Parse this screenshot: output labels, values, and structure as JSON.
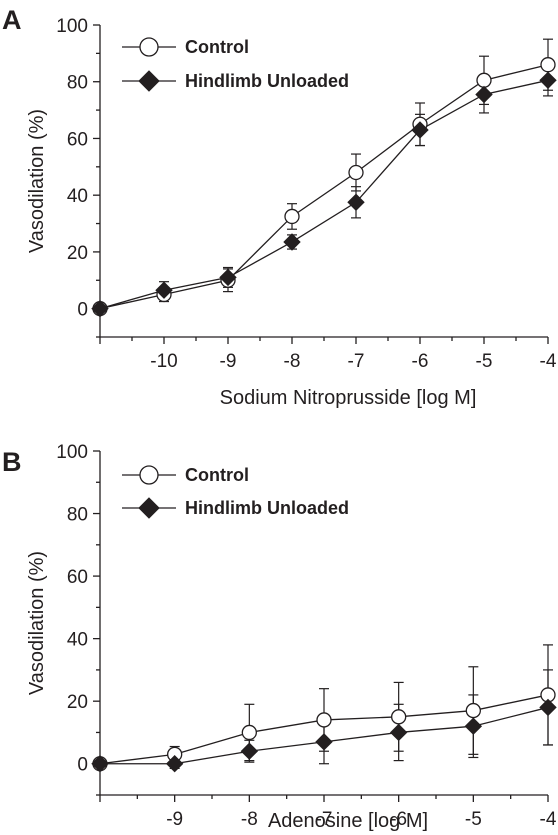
{
  "chart_data": [
    {
      "type": "line",
      "panel_label": "A",
      "xlabel": "Sodium Nitroprusside [log M]",
      "ylabel": "Vasodilation (%)",
      "ylim": [
        -10,
        100
      ],
      "xlim": [
        -11,
        -4
      ],
      "yticks": [
        0,
        20,
        40,
        60,
        80,
        100
      ],
      "xticks": [
        -10,
        -9,
        -8,
        -7,
        -6,
        -5,
        -4
      ],
      "grid": false,
      "legend_position": "top-left",
      "series": [
        {
          "name": "Control",
          "marker": "open-circle",
          "x": [
            -11,
            -10,
            -9,
            -8,
            -7,
            -6,
            -5,
            -4
          ],
          "y": [
            0,
            5,
            10,
            32.5,
            48,
            65,
            80.5,
            86
          ],
          "err": [
            0,
            2.5,
            4,
            4.5,
            6.5,
            7.5,
            8.5,
            9
          ]
        },
        {
          "name": "Hindlimb Unloaded",
          "marker": "filled-diamond",
          "x": [
            -11,
            -10,
            -9,
            -8,
            -7,
            -6,
            -5,
            -4
          ],
          "y": [
            0,
            6.5,
            11,
            23.5,
            37.5,
            63,
            75.5,
            80.5
          ],
          "err": [
            0,
            3,
            3.5,
            2.5,
            5.5,
            5.5,
            6.5,
            5.5
          ]
        }
      ]
    },
    {
      "type": "line",
      "panel_label": "B",
      "xlabel": "Adenosine [log M]",
      "ylabel": "Vasodilation (%)",
      "ylim": [
        -10,
        100
      ],
      "xlim": [
        -10,
        -4
      ],
      "yticks": [
        0,
        20,
        40,
        60,
        80,
        100
      ],
      "xticks": [
        -9,
        -8,
        -7,
        -6,
        -5,
        -4
      ],
      "grid": false,
      "legend_position": "top-left",
      "series": [
        {
          "name": "Control",
          "marker": "open-circle",
          "x": [
            -10,
            -9,
            -8,
            -7,
            -6,
            -5,
            -4
          ],
          "y": [
            0,
            3,
            10,
            14,
            15,
            17,
            22
          ],
          "err": [
            0,
            2.5,
            9,
            10,
            11,
            14,
            16
          ]
        },
        {
          "name": "Hindlimb Unloaded",
          "marker": "filled-diamond",
          "x": [
            -10,
            -9,
            -8,
            -7,
            -6,
            -5,
            -4
          ],
          "y": [
            0,
            0,
            4,
            7,
            10,
            12,
            18
          ],
          "err": [
            0,
            1.5,
            3.5,
            7,
            9,
            10,
            12
          ]
        }
      ]
    }
  ]
}
